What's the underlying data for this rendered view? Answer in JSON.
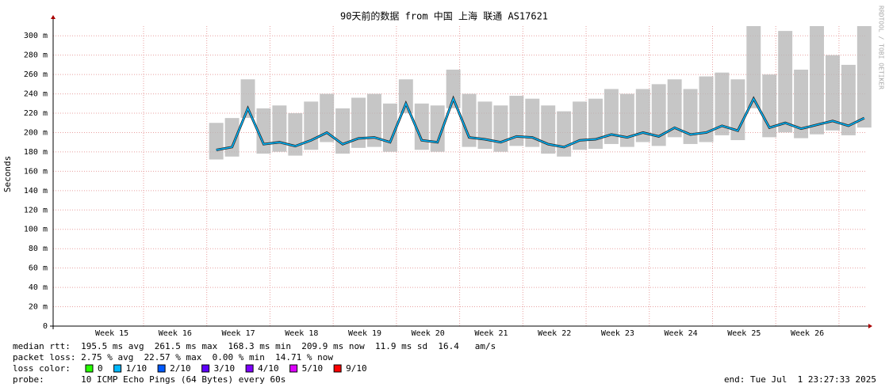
{
  "chart_data": {
    "type": "line",
    "title": "90天前的数据 from 中国 上海 联通 AS17621",
    "y_label": "Seconds",
    "watermark": "RRDTOOL / TOBI OETIKER",
    "xlim": [
      14.07,
      26.94
    ],
    "xticks": [
      {
        "value": 15,
        "label": "Week 15"
      },
      {
        "value": 16,
        "label": "Week 16"
      },
      {
        "value": 17,
        "label": "Week 17"
      },
      {
        "value": 18,
        "label": "Week 18"
      },
      {
        "value": 19,
        "label": "Week 19"
      },
      {
        "value": 20,
        "label": "Week 20"
      },
      {
        "value": 21,
        "label": "Week 21"
      },
      {
        "value": 22,
        "label": "Week 22"
      },
      {
        "value": 23,
        "label": "Week 23"
      },
      {
        "value": 24,
        "label": "Week 24"
      },
      {
        "value": 25,
        "label": "Week 25"
      },
      {
        "value": 26,
        "label": "Week 26"
      }
    ],
    "ylim": [
      0,
      310
    ],
    "yticks": [
      {
        "value": 0,
        "label": "0"
      },
      {
        "value": 20,
        "label": "20 m"
      },
      {
        "value": 40,
        "label": "40 m"
      },
      {
        "value": 60,
        "label": "60 m"
      },
      {
        "value": 80,
        "label": "80 m"
      },
      {
        "value": 100,
        "label": "100 m"
      },
      {
        "value": 120,
        "label": "120 m"
      },
      {
        "value": 140,
        "label": "140 m"
      },
      {
        "value": 160,
        "label": "160 m"
      },
      {
        "value": 180,
        "label": "180 m"
      },
      {
        "value": 200,
        "label": "200 m"
      },
      {
        "value": 220,
        "label": "220 m"
      },
      {
        "value": 240,
        "label": "240 m"
      },
      {
        "value": 260,
        "label": "260 m"
      },
      {
        "value": 280,
        "label": "280 m"
      },
      {
        "value": 300,
        "label": "300 m"
      }
    ],
    "grid": true,
    "x": [
      16.65,
      16.9,
      17.15,
      17.4,
      17.65,
      17.9,
      18.15,
      18.4,
      18.65,
      18.9,
      19.15,
      19.4,
      19.65,
      19.9,
      20.15,
      20.4,
      20.65,
      20.9,
      21.15,
      21.4,
      21.65,
      21.9,
      22.15,
      22.4,
      22.65,
      22.9,
      23.15,
      23.4,
      23.65,
      23.9,
      24.15,
      24.4,
      24.65,
      24.9,
      25.15,
      25.4,
      25.65,
      25.9,
      26.15,
      26.4,
      26.65,
      26.9
    ],
    "series": [
      {
        "color": "#00b8ff",
        "values": [
          182,
          185,
          225,
          188,
          190,
          186,
          192,
          200,
          188,
          194,
          195,
          190,
          230,
          192,
          190,
          235,
          195,
          193,
          190,
          196,
          195,
          188,
          185,
          192,
          193,
          198,
          195,
          200,
          196,
          205,
          198,
          200,
          207,
          202,
          235,
          205,
          210,
          204,
          208,
          212,
          207,
          215
        ]
      },
      {
        "color": "#b8b8b8",
        "values": [
          210,
          215,
          255,
          225,
          228,
          220,
          232,
          240,
          225,
          236,
          240,
          230,
          255,
          230,
          228,
          265,
          240,
          232,
          228,
          238,
          235,
          228,
          222,
          232,
          235,
          245,
          240,
          245,
          250,
          255,
          245,
          258,
          262,
          255,
          310,
          260,
          305,
          265,
          310,
          280,
          270,
          310
        ]
      }
    ],
    "footer": {
      "lines": [
        "median rtt:  195.5 ms avg  261.5 ms max  168.3 ms min  209.9 ms now  11.9 ms sd  16.4   am/s",
        "packet loss: 2.75 % avg  22.57 % max  0.00 % min  14.71 % now"
      ],
      "loss_label": "loss color:",
      "loss_colors": [
        {
          "label": "0",
          "color": "#26ff00"
        },
        {
          "label": "1/10",
          "color": "#00b8ff"
        },
        {
          "label": "2/10",
          "color": "#0059ff"
        },
        {
          "label": "3/10",
          "color": "#5e00ff"
        },
        {
          "label": "4/10",
          "color": "#7e00ff"
        },
        {
          "label": "5/10",
          "color": "#dd00ff"
        },
        {
          "label": "9/10",
          "color": "#ff0000"
        }
      ],
      "probe": "probe:       10 ICMP Echo Pings (64 Bytes) every 60s",
      "end": "end: Tue Jul  1 23:27:33 2025"
    }
  }
}
